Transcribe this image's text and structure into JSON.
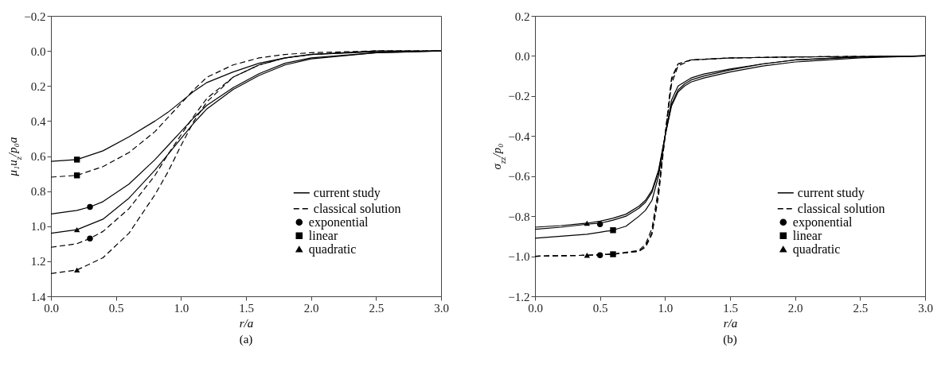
{
  "chart_data": [
    {
      "type": "line",
      "xlabel": "r/a",
      "ylabel": "μ₁u$_{z}$/p₀a",
      "annotations": [
        "(a)"
      ],
      "xlim": [
        0,
        3
      ],
      "xticks": [
        {
          "value": 0,
          "label": "0.0"
        },
        0.5,
        {
          "value": 1,
          "label": "1.0"
        },
        1.5,
        {
          "value": 2,
          "label": "2.0"
        },
        2.5,
        {
          "value": 3,
          "label": "3.0"
        }
      ],
      "ylim": [
        1.4,
        -0.2
      ],
      "yticks": [
        -0.2,
        {
          "value": 0,
          "label": "0.0"
        },
        0.2,
        0.4,
        0.6,
        0.8,
        {
          "value": 1,
          "label": "1.0"
        },
        1.2,
        1.4
      ],
      "legend": "bottom right",
      "series": [
        {
          "name": "current study",
          "type": "line",
          "color": "#000000",
          "line_style": "solid",
          "x": [
            0,
            0.2,
            0.4,
            0.6,
            0.8,
            0.9,
            1,
            1.1,
            1.2,
            1.4,
            1.6,
            1.8,
            2,
            2.5,
            3
          ],
          "values": [
            0.63,
            0.62,
            0.57,
            0.49,
            0.4,
            0.35,
            0.29,
            0.23,
            0.18,
            0.12,
            0.07,
            0.04,
            0.02,
            0.005,
            0
          ]
        },
        {
          "type": "line",
          "color": "#000000",
          "line_style": "solid",
          "x": [
            0,
            0.2,
            0.3,
            0.4,
            0.6,
            0.8,
            0.9,
            1,
            1.1,
            1.2,
            1.4,
            1.6,
            1.8,
            2,
            2.5,
            3
          ],
          "values": [
            0.93,
            0.91,
            0.89,
            0.86,
            0.76,
            0.62,
            0.54,
            0.46,
            0.38,
            0.31,
            0.21,
            0.13,
            0.07,
            0.04,
            0.01,
            0
          ]
        },
        {
          "type": "line",
          "color": "#000000",
          "line_style": "solid",
          "x": [
            0,
            0.2,
            0.4,
            0.6,
            0.8,
            0.9,
            1,
            1.1,
            1.2,
            1.4,
            1.6,
            1.8,
            2,
            2.5,
            3
          ],
          "values": [
            1.04,
            1.02,
            0.96,
            0.84,
            0.68,
            0.59,
            0.5,
            0.41,
            0.33,
            0.22,
            0.14,
            0.08,
            0.045,
            0.01,
            0
          ]
        },
        {
          "name": "classical solution",
          "type": "line",
          "color": "#000000",
          "line_style": "dashed",
          "x": [
            0,
            0.2,
            0.4,
            0.6,
            0.8,
            0.9,
            1,
            1.1,
            1.2,
            1.4,
            1.6,
            1.8,
            2,
            2.5,
            3
          ],
          "values": [
            0.72,
            0.71,
            0.66,
            0.58,
            0.46,
            0.38,
            0.3,
            0.22,
            0.15,
            0.08,
            0.04,
            0.02,
            0.01,
            0,
            0
          ]
        },
        {
          "type": "line",
          "color": "#000000",
          "line_style": "dashed",
          "x": [
            0,
            0.2,
            0.3,
            0.4,
            0.6,
            0.8,
            0.9,
            1,
            1.1,
            1.2,
            1.4,
            1.6,
            1.8,
            2,
            2.5,
            3
          ],
          "values": [
            1.12,
            1.1,
            1.07,
            1.03,
            0.9,
            0.71,
            0.59,
            0.48,
            0.37,
            0.27,
            0.15,
            0.08,
            0.04,
            0.02,
            0,
            0
          ]
        },
        {
          "type": "line",
          "color": "#000000",
          "line_style": "dashed",
          "x": [
            0,
            0.2,
            0.4,
            0.6,
            0.8,
            0.9,
            1,
            1.1,
            1.2,
            1.4,
            1.6,
            1.8,
            2,
            2.5,
            3
          ],
          "values": [
            1.27,
            1.25,
            1.18,
            1.04,
            0.82,
            0.69,
            0.54,
            0.4,
            0.29,
            0.15,
            0.08,
            0.04,
            0.02,
            0,
            0
          ]
        },
        {
          "name": "exponential",
          "type": "scatter",
          "color": "#000000",
          "marker": "circle",
          "x": [
            0.3,
            0.3
          ],
          "values": [
            0.89,
            1.07
          ]
        },
        {
          "name": "linear",
          "type": "scatter",
          "color": "#000000",
          "marker": "square",
          "x": [
            0.2,
            0.2
          ],
          "values": [
            0.62,
            0.71
          ]
        },
        {
          "name": "quadratic",
          "type": "scatter",
          "color": "#000000",
          "marker": "triangle",
          "x": [
            0.2,
            0.2
          ],
          "values": [
            1.02,
            1.25
          ]
        }
      ]
    },
    {
      "type": "line",
      "xlabel": "r/a",
      "ylabel": "σ$_{zz}$/p₀",
      "annotations": [
        "(b)"
      ],
      "xlim": [
        0,
        3
      ],
      "xticks": [
        {
          "value": 0,
          "label": "0.0"
        },
        0.5,
        {
          "value": 1,
          "label": "1.0"
        },
        1.5,
        {
          "value": 2,
          "label": "2.0"
        },
        2.5,
        {
          "value": 3,
          "label": "3.0"
        }
      ],
      "ylim": [
        -1.2,
        0.2
      ],
      "yticks": [
        -1.2,
        {
          "value": -1,
          "label": "−1.0"
        },
        -0.8,
        -0.6,
        -0.4,
        -0.2,
        {
          "value": 0,
          "label": "0.0"
        },
        0.2
      ],
      "legend": "bottom right",
      "series": [
        {
          "name": "current study",
          "type": "line",
          "color": "#000000",
          "line_style": "solid",
          "x": [
            0,
            0.2,
            0.4,
            0.5,
            0.6,
            0.7,
            0.8,
            0.85,
            0.9,
            0.95,
            1,
            1.05,
            1.1,
            1.15,
            1.2,
            1.3,
            1.5,
            1.75,
            2,
            2.5,
            3
          ],
          "values": [
            -0.865,
            -0.855,
            -0.84,
            -0.835,
            -0.82,
            -0.8,
            -0.76,
            -0.73,
            -0.68,
            -0.58,
            -0.4,
            -0.24,
            -0.17,
            -0.14,
            -0.12,
            -0.1,
            -0.07,
            -0.04,
            -0.02,
            -0.005,
            0
          ]
        },
        {
          "type": "line",
          "color": "#000000",
          "line_style": "solid",
          "x": [
            0,
            0.2,
            0.4,
            0.5,
            0.6,
            0.7,
            0.8,
            0.85,
            0.9,
            0.95,
            1,
            1.05,
            1.1,
            1.15,
            1.2,
            1.3,
            1.5,
            1.75,
            2,
            2.5,
            3
          ],
          "values": [
            -0.91,
            -0.9,
            -0.89,
            -0.88,
            -0.87,
            -0.85,
            -0.8,
            -0.77,
            -0.72,
            -0.6,
            -0.4,
            -0.22,
            -0.15,
            -0.13,
            -0.11,
            -0.09,
            -0.065,
            -0.04,
            -0.02,
            -0.005,
            0
          ]
        },
        {
          "type": "line",
          "color": "#000000",
          "line_style": "solid",
          "x": [
            0,
            0.2,
            0.4,
            0.5,
            0.6,
            0.7,
            0.8,
            0.85,
            0.9,
            0.95,
            1,
            1.05,
            1.1,
            1.15,
            1.2,
            1.3,
            1.5,
            1.75,
            2,
            2.5,
            3
          ],
          "values": [
            -0.855,
            -0.847,
            -0.835,
            -0.825,
            -0.81,
            -0.79,
            -0.75,
            -0.72,
            -0.67,
            -0.57,
            -0.4,
            -0.25,
            -0.18,
            -0.15,
            -0.13,
            -0.11,
            -0.08,
            -0.05,
            -0.03,
            -0.01,
            0
          ]
        },
        {
          "name": "classical solution",
          "type": "line",
          "color": "#000000",
          "line_style": "dashed",
          "x": [
            0,
            0.4,
            0.6,
            0.8,
            0.85,
            0.9,
            0.95,
            1,
            1.05,
            1.1,
            1.2,
            1.5,
            2,
            3
          ],
          "values": [
            -1,
            -0.995,
            -0.99,
            -0.975,
            -0.95,
            -0.88,
            -0.68,
            -0.4,
            -0.12,
            -0.04,
            -0.02,
            -0.01,
            -0.005,
            0
          ]
        },
        {
          "type": "line",
          "color": "#000000",
          "line_style": "dashed",
          "x": [
            0,
            0.4,
            0.6,
            0.8,
            0.85,
            0.9,
            0.95,
            1,
            1.05,
            1.1,
            1.2,
            1.5,
            2,
            3
          ],
          "values": [
            -1,
            -0.995,
            -0.99,
            -0.97,
            -0.94,
            -0.86,
            -0.66,
            -0.4,
            -0.14,
            -0.05,
            -0.02,
            -0.01,
            -0.005,
            0
          ]
        },
        {
          "type": "line",
          "color": "#000000",
          "line_style": "dashed",
          "x": [
            0,
            0.4,
            0.6,
            0.8,
            0.85,
            0.9,
            0.95,
            1,
            1.05,
            1.1,
            1.2,
            1.5,
            2,
            3
          ],
          "values": [
            -1,
            -0.995,
            -0.99,
            -0.975,
            -0.955,
            -0.89,
            -0.7,
            -0.4,
            -0.11,
            -0.04,
            -0.02,
            -0.01,
            -0.005,
            0
          ]
        },
        {
          "name": "exponential",
          "type": "scatter",
          "color": "#000000",
          "marker": "circle",
          "x": [
            0.5,
            0.5
          ],
          "values": [
            -0.84,
            -0.995
          ]
        },
        {
          "name": "linear",
          "type": "scatter",
          "color": "#000000",
          "marker": "square",
          "x": [
            0.6,
            0.6
          ],
          "values": [
            -0.87,
            -0.99
          ]
        },
        {
          "name": "quadratic",
          "type": "scatter",
          "color": "#000000",
          "marker": "triangle",
          "x": [
            0.4,
            0.4
          ],
          "values": [
            -0.835,
            -0.995
          ]
        }
      ]
    }
  ]
}
